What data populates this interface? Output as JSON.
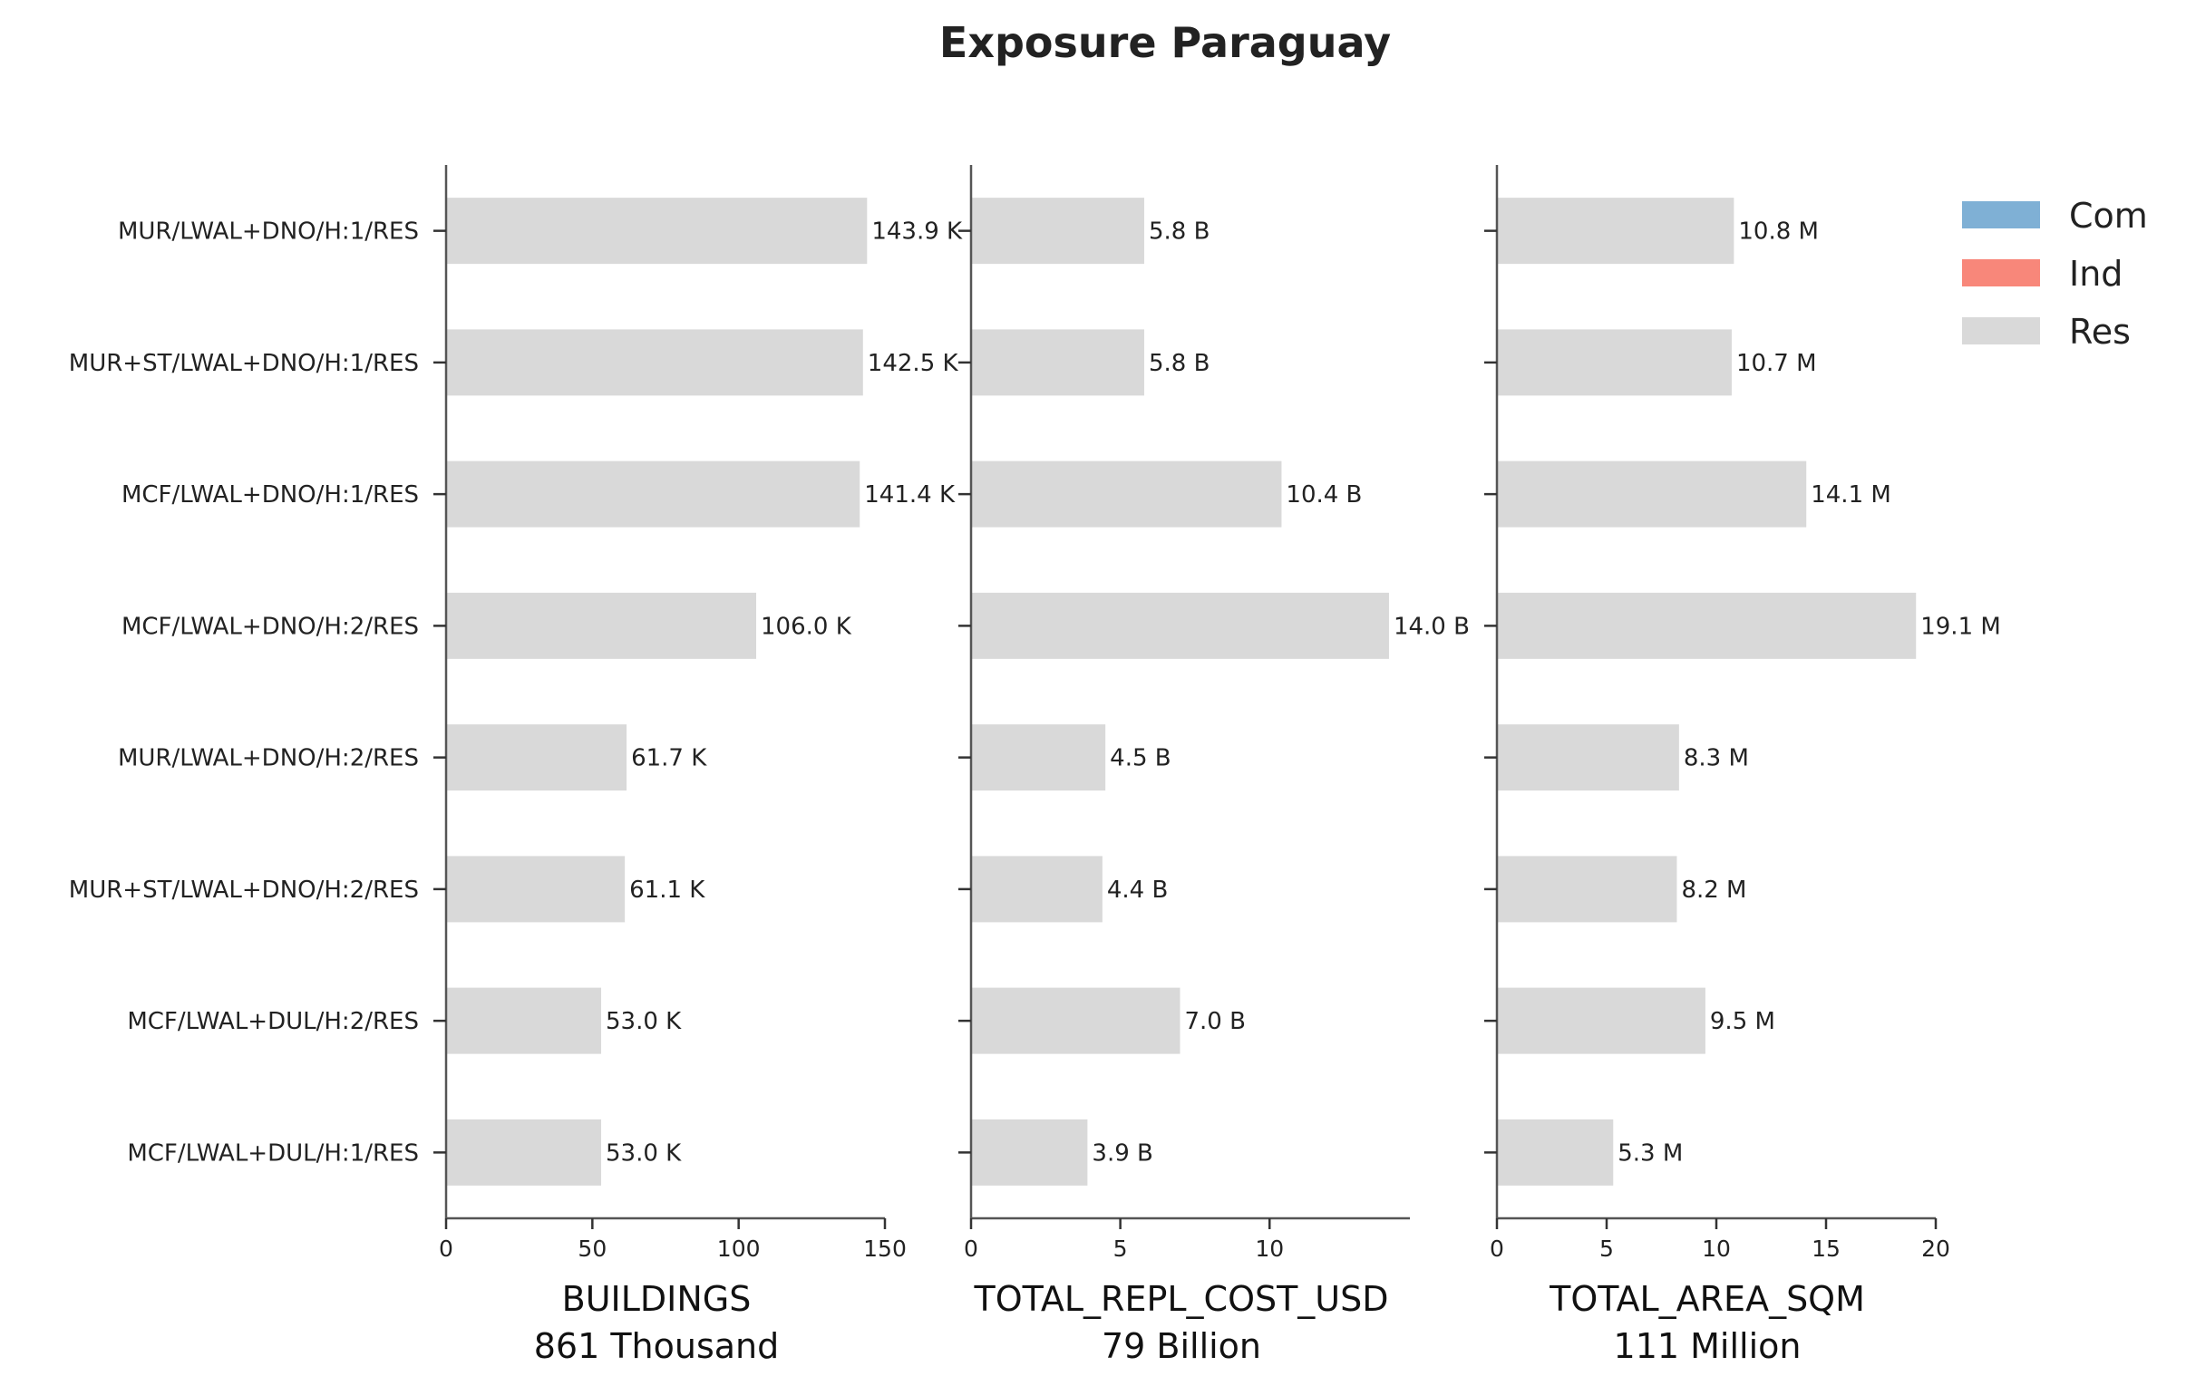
{
  "chart_data": {
    "title": "Exposure Paraguay",
    "type": "bar",
    "orientation": "horizontal",
    "colors": {
      "Com": "#7fb0d5",
      "Ind": "#f8877a",
      "Res": "#d9d9d9"
    },
    "legend": {
      "placement": "top-right",
      "entries": [
        "Com",
        "Ind",
        "Res"
      ]
    },
    "categories": [
      "MUR/LWAL+DNO/H:1/RES",
      "MUR+ST/LWAL+DNO/H:1/RES",
      "MCF/LWAL+DNO/H:1/RES",
      "MCF/LWAL+DNO/H:2/RES",
      "MUR/LWAL+DNO/H:2/RES",
      "MUR+ST/LWAL+DNO/H:2/RES",
      "MCF/LWAL+DUL/H:2/RES",
      "MCF/LWAL+DUL/H:1/RES"
    ],
    "panels": [
      {
        "xlabel": "BUILDINGS",
        "total": "861 Thousand",
        "xlim": [
          0,
          150
        ],
        "xticks": [
          0,
          50,
          100,
          150
        ],
        "series": [
          {
            "name": "Res",
            "values": [
              143.9,
              142.5,
              141.4,
              106.0,
              61.7,
              61.1,
              53.0,
              53.0
            ]
          }
        ],
        "value_labels": [
          "143.9 K",
          "142.5 K",
          "141.4 K",
          "106.0 K",
          "61.7 K",
          "61.1 K",
          "53.0 K",
          "53.0 K"
        ]
      },
      {
        "xlabel": "TOTAL_REPL_COST_USD",
        "total": "79 Billion",
        "xlim": [
          0,
          14.7
        ],
        "xticks": [
          0,
          5,
          10
        ],
        "series": [
          {
            "name": "Res",
            "values": [
              5.8,
              5.8,
              10.4,
              14.0,
              4.5,
              4.4,
              7.0,
              3.9
            ]
          }
        ],
        "value_labels": [
          "5.8 B",
          "5.8 B",
          "10.4 B",
          "14.0 B",
          "4.5 B",
          "4.4 B",
          "7.0 B",
          "3.9 B"
        ]
      },
      {
        "xlabel": "TOTAL_AREA_SQM",
        "total": "111 Million",
        "xlim": [
          0,
          20
        ],
        "xticks": [
          0,
          5,
          10,
          15,
          20
        ],
        "series": [
          {
            "name": "Res",
            "values": [
              10.8,
              10.7,
              14.1,
              19.1,
              8.3,
              8.2,
              9.5,
              5.3
            ]
          }
        ],
        "value_labels": [
          "10.8 M",
          "10.7 M",
          "14.1 M",
          "19.1 M",
          "8.3 M",
          "8.2 M",
          "9.5 M",
          "5.3 M"
        ]
      }
    ]
  }
}
